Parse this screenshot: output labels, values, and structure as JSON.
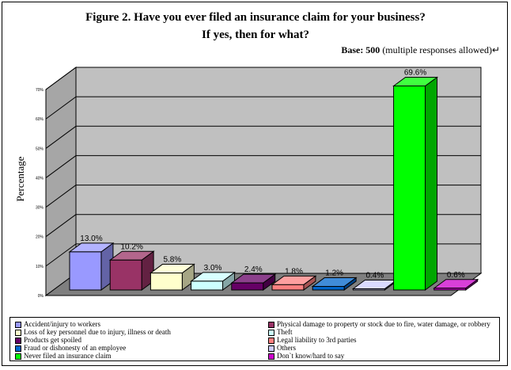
{
  "title_line1": "Figure 2. Have you ever filed an insurance claim for your business?",
  "title_line2": "If yes, then for what?",
  "base_label": "Base: 500",
  "base_note": "(multiple responses allowed)↵",
  "chart_data": {
    "type": "bar",
    "ylabel": "Percentage",
    "ylim": [
      0,
      70
    ],
    "yticks": [
      "0%",
      "10%",
      "20%",
      "30%",
      "40%",
      "50%",
      "60%",
      "70%"
    ],
    "categories": [
      "Accident/injury to workers",
      "Physical damage to property or stock due to fire, water damage, or robbery",
      "Loss of key personnel due to injury, illness or death",
      "Theft",
      "Products get spoiled",
      "Legal liability to 3rd parties",
      "Fraud or dishonesty of an employee",
      "Others",
      "Never filed an insurance claim",
      "Don`t know/hard to say"
    ],
    "values": [
      13.0,
      10.2,
      5.8,
      3.0,
      2.4,
      1.8,
      1.2,
      0.4,
      69.6,
      0.6
    ],
    "value_labels": [
      "13.0%",
      "10.2%",
      "5.8%",
      "3.0%",
      "2.4%",
      "1.8%",
      "1.2%",
      "0.4%",
      "69.6%",
      "0.6%"
    ],
    "colors": [
      "#9999ff",
      "#993366",
      "#ffffcc",
      "#ccffff",
      "#660066",
      "#ff8080",
      "#0066cc",
      "#ccccff",
      "#00ff00",
      "#cc00cc"
    ],
    "grid": true,
    "legend_position": "bottom"
  }
}
